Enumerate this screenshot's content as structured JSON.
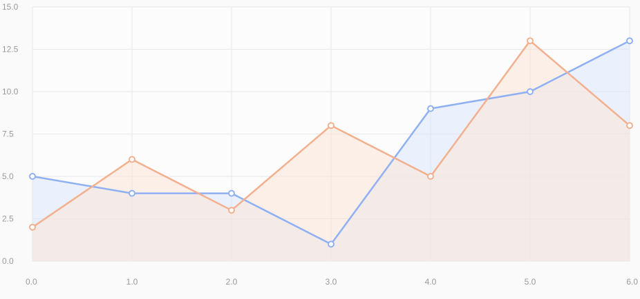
{
  "chart_data": {
    "type": "area",
    "x": [
      0,
      1,
      2,
      3,
      4,
      5,
      6
    ],
    "x_tick_labels": [
      "0.0",
      "1.0",
      "2.0",
      "3.0",
      "4.0",
      "5.0",
      "6.0"
    ],
    "y_tick_values": [
      0,
      2.5,
      5,
      7.5,
      10,
      12.5,
      15
    ],
    "y_tick_labels": [
      "0.0",
      "2.5",
      "5.0",
      "7.5",
      "10.0",
      "12.5",
      "15.0"
    ],
    "xlim": [
      0,
      6
    ],
    "ylim": [
      0,
      15
    ],
    "grid": true,
    "legend": "none",
    "title": "",
    "xlabel": "",
    "ylabel": "",
    "series": [
      {
        "values": [
          5,
          4,
          4,
          1,
          9,
          10,
          13
        ],
        "color": "#8fb0f3",
        "fill": "#dce8fb"
      },
      {
        "values": [
          2,
          6,
          3,
          8,
          5,
          13,
          8
        ],
        "color": "#f2b08f",
        "fill": "#fbe3d6"
      }
    ]
  }
}
